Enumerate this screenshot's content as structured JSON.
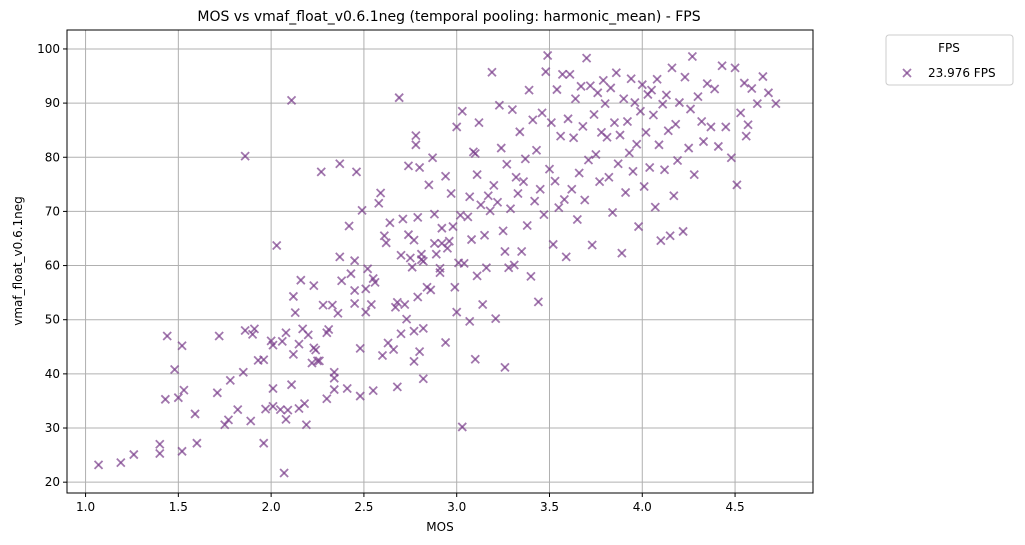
{
  "chart_data": {
    "type": "scatter",
    "title": "MOS vs vmaf_float_v0.6.1neg (temporal pooling: harmonic_mean) - FPS",
    "xlabel": "MOS",
    "ylabel": "vmaf_float_v0.6.1neg",
    "xlim": [
      0.9,
      4.92
    ],
    "ylim": [
      18.0,
      103.5
    ],
    "xticks": [
      1.0,
      1.5,
      2.0,
      2.5,
      3.0,
      3.5,
      4.0,
      4.5
    ],
    "xtick_labels": [
      "1.0",
      "1.5",
      "2.0",
      "2.5",
      "3.0",
      "3.5",
      "4.0",
      "4.5"
    ],
    "yticks": [
      20,
      30,
      40,
      50,
      60,
      70,
      80,
      90,
      100
    ],
    "ytick_labels": [
      "20",
      "30",
      "40",
      "50",
      "60",
      "70",
      "80",
      "90",
      "100"
    ],
    "grid": true,
    "legend": {
      "title": "FPS",
      "placement": "outside-top-right"
    },
    "marker": "x",
    "series": [
      {
        "name": "23.976 FPS",
        "color": "#7b3f8c",
        "points": [
          [
            1.07,
            23.2
          ],
          [
            1.19,
            23.6
          ],
          [
            1.26,
            25.1
          ],
          [
            1.4,
            25.3
          ],
          [
            1.4,
            27
          ],
          [
            1.43,
            35.3
          ],
          [
            1.44,
            47
          ],
          [
            1.48,
            40.8
          ],
          [
            1.5,
            35.6
          ],
          [
            1.52,
            25.7
          ],
          [
            1.52,
            45.2
          ],
          [
            1.53,
            37
          ],
          [
            1.59,
            32.6
          ],
          [
            1.6,
            27.2
          ],
          [
            1.71,
            36.5
          ],
          [
            1.72,
            47
          ],
          [
            1.75,
            30.6
          ],
          [
            1.77,
            31.5
          ],
          [
            1.78,
            38.8
          ],
          [
            1.82,
            33.4
          ],
          [
            1.85,
            40.3
          ],
          [
            1.86,
            48
          ],
          [
            1.86,
            80.2
          ],
          [
            1.89,
            31.3
          ],
          [
            1.9,
            47.3
          ],
          [
            1.91,
            48.3
          ],
          [
            1.93,
            42.5
          ],
          [
            1.96,
            27.2
          ],
          [
            1.96,
            42.6
          ],
          [
            1.97,
            33.5
          ],
          [
            2,
            46.1
          ],
          [
            2.01,
            37.3
          ],
          [
            2.01,
            34
          ],
          [
            2.01,
            45.3
          ],
          [
            2.03,
            63.7
          ],
          [
            2.05,
            33.4
          ],
          [
            2.06,
            46
          ],
          [
            2.07,
            21.7
          ],
          [
            2.08,
            31.6
          ],
          [
            2.08,
            47.6
          ],
          [
            2.09,
            33.3
          ],
          [
            2.11,
            38
          ],
          [
            2.11,
            90.5
          ],
          [
            2.12,
            43.6
          ],
          [
            2.12,
            54.3
          ],
          [
            2.13,
            51.3
          ],
          [
            2.15,
            33.6
          ],
          [
            2.15,
            45.5
          ],
          [
            2.16,
            57.3
          ],
          [
            2.17,
            48.3
          ],
          [
            2.18,
            34.5
          ],
          [
            2.19,
            30.6
          ],
          [
            2.2,
            47.2
          ],
          [
            2.22,
            42
          ],
          [
            2.23,
            56.3
          ],
          [
            2.23,
            44.8
          ],
          [
            2.24,
            44.4
          ],
          [
            2.25,
            42.4
          ],
          [
            2.26,
            42.4
          ],
          [
            2.27,
            77.3
          ],
          [
            2.28,
            52.7
          ],
          [
            2.3,
            35.4
          ],
          [
            2.3,
            47.6
          ],
          [
            2.31,
            48.2
          ],
          [
            2.33,
            52.7
          ],
          [
            2.34,
            37.1
          ],
          [
            2.34,
            40.3
          ],
          [
            2.34,
            39.2
          ],
          [
            2.36,
            51.2
          ],
          [
            2.37,
            61.6
          ],
          [
            2.37,
            78.8
          ],
          [
            2.38,
            57.2
          ],
          [
            2.41,
            37.3
          ],
          [
            2.42,
            67.3
          ],
          [
            2.43,
            58.5
          ],
          [
            2.45,
            55.4
          ],
          [
            2.45,
            53
          ],
          [
            2.45,
            60.9
          ],
          [
            2.46,
            77.3
          ],
          [
            2.48,
            44.7
          ],
          [
            2.48,
            35.9
          ],
          [
            2.49,
            70.2
          ],
          [
            2.51,
            55.7
          ],
          [
            2.51,
            51.4
          ],
          [
            2.52,
            59.4
          ],
          [
            2.54,
            52.8
          ],
          [
            2.55,
            36.9
          ],
          [
            2.55,
            57.6
          ],
          [
            2.56,
            56.9
          ],
          [
            2.58,
            71.5
          ],
          [
            2.59,
            73.4
          ],
          [
            2.6,
            43.4
          ],
          [
            2.61,
            65.5
          ],
          [
            2.62,
            64.2
          ],
          [
            2.63,
            45.7
          ],
          [
            2.64,
            67.9
          ],
          [
            2.66,
            44.5
          ],
          [
            2.67,
            52.3
          ],
          [
            2.68,
            53.2
          ],
          [
            2.68,
            37.6
          ],
          [
            2.69,
            91
          ],
          [
            2.7,
            47.4
          ],
          [
            2.7,
            61.9
          ],
          [
            2.71,
            68.6
          ],
          [
            2.72,
            52.8
          ],
          [
            2.73,
            50.1
          ],
          [
            2.74,
            65.7
          ],
          [
            2.74,
            78.4
          ],
          [
            2.75,
            61.4
          ],
          [
            2.76,
            59.7
          ],
          [
            2.77,
            64.7
          ],
          [
            2.77,
            42.3
          ],
          [
            2.77,
            47.9
          ],
          [
            2.78,
            84
          ],
          [
            2.78,
            82.3
          ],
          [
            2.79,
            54.2
          ],
          [
            2.79,
            68.9
          ],
          [
            2.8,
            44.1
          ],
          [
            2.8,
            78.1
          ],
          [
            2.81,
            61.1
          ],
          [
            2.81,
            62.1
          ],
          [
            2.82,
            39.1
          ],
          [
            2.82,
            60.8
          ],
          [
            2.82,
            48.4
          ],
          [
            2.84,
            56
          ],
          [
            2.85,
            74.9
          ],
          [
            2.86,
            55.5
          ],
          [
            2.87,
            79.9
          ],
          [
            2.88,
            69.5
          ],
          [
            2.88,
            64.1
          ],
          [
            2.89,
            62.1
          ],
          [
            2.91,
            59.5
          ],
          [
            2.91,
            58.7
          ],
          [
            2.92,
            64.1
          ],
          [
            2.92,
            66.9
          ],
          [
            2.94,
            76.5
          ],
          [
            2.94,
            45.8
          ],
          [
            2.95,
            63.2
          ],
          [
            2.96,
            64.5
          ],
          [
            2.97,
            73.3
          ],
          [
            2.98,
            67.2
          ],
          [
            2.99,
            56
          ],
          [
            3,
            51.4
          ],
          [
            3,
            85.6
          ],
          [
            3.01,
            60.5
          ],
          [
            3.02,
            69.3
          ],
          [
            3.03,
            30.2
          ],
          [
            3.03,
            88.5
          ],
          [
            3.04,
            60.4
          ],
          [
            3.06,
            69
          ],
          [
            3.07,
            72.7
          ],
          [
            3.07,
            49.7
          ],
          [
            3.08,
            64.8
          ],
          [
            3.09,
            81
          ],
          [
            3.1,
            42.7
          ],
          [
            3.1,
            80.7
          ],
          [
            3.11,
            58.1
          ],
          [
            3.11,
            76.8
          ],
          [
            3.12,
            86.4
          ],
          [
            3.13,
            71.2
          ],
          [
            3.14,
            52.8
          ],
          [
            3.15,
            65.6
          ],
          [
            3.16,
            59.6
          ],
          [
            3.17,
            72.9
          ],
          [
            3.18,
            70.1
          ],
          [
            3.19,
            95.7
          ],
          [
            3.2,
            74.8
          ],
          [
            3.21,
            50.2
          ],
          [
            3.22,
            71.7
          ],
          [
            3.23,
            89.6
          ],
          [
            3.24,
            81.7
          ],
          [
            3.25,
            66.4
          ],
          [
            3.26,
            62.6
          ],
          [
            3.26,
            41.2
          ],
          [
            3.27,
            78.7
          ],
          [
            3.28,
            59.6
          ],
          [
            3.29,
            70.5
          ],
          [
            3.3,
            88.8
          ],
          [
            3.31,
            60.1
          ],
          [
            3.32,
            76.3
          ],
          [
            3.33,
            73.3
          ],
          [
            3.34,
            84.7
          ],
          [
            3.35,
            62.6
          ],
          [
            3.36,
            75.5
          ],
          [
            3.37,
            79.7
          ],
          [
            3.38,
            67.4
          ],
          [
            3.39,
            92.4
          ],
          [
            3.4,
            58
          ],
          [
            3.41,
            86.9
          ],
          [
            3.42,
            71.9
          ],
          [
            3.43,
            81.3
          ],
          [
            3.44,
            53.3
          ],
          [
            3.45,
            74.1
          ],
          [
            3.46,
            88.2
          ],
          [
            3.47,
            69.4
          ],
          [
            3.48,
            95.8
          ],
          [
            3.49,
            98.8
          ],
          [
            3.5,
            77.8
          ],
          [
            3.51,
            86.4
          ],
          [
            3.52,
            63.9
          ],
          [
            3.53,
            75.6
          ],
          [
            3.54,
            92.5
          ],
          [
            3.55,
            70.7
          ],
          [
            3.56,
            83.9
          ],
          [
            3.57,
            95.3
          ],
          [
            3.58,
            72.2
          ],
          [
            3.59,
            61.6
          ],
          [
            3.6,
            87.1
          ],
          [
            3.61,
            95.3
          ],
          [
            3.62,
            74.1
          ],
          [
            3.63,
            83.6
          ],
          [
            3.64,
            90.8
          ],
          [
            3.65,
            68.5
          ],
          [
            3.66,
            77.1
          ],
          [
            3.67,
            93.1
          ],
          [
            3.68,
            85.7
          ],
          [
            3.69,
            72.1
          ],
          [
            3.7,
            98.3
          ],
          [
            3.71,
            79.5
          ],
          [
            3.72,
            93.2
          ],
          [
            3.73,
            63.8
          ],
          [
            3.74,
            87.9
          ],
          [
            3.75,
            80.5
          ],
          [
            3.76,
            91.9
          ],
          [
            3.77,
            75.5
          ],
          [
            3.78,
            84.6
          ],
          [
            3.79,
            94.2
          ],
          [
            3.8,
            89.9
          ],
          [
            3.81,
            83.7
          ],
          [
            3.82,
            76.3
          ],
          [
            3.83,
            92.8
          ],
          [
            3.84,
            69.8
          ],
          [
            3.85,
            86.4
          ],
          [
            3.86,
            95.6
          ],
          [
            3.87,
            78.8
          ],
          [
            3.88,
            84.1
          ],
          [
            3.89,
            62.3
          ],
          [
            3.9,
            90.8
          ],
          [
            3.91,
            73.5
          ],
          [
            3.92,
            86.6
          ],
          [
            3.93,
            80.8
          ],
          [
            3.94,
            94.5
          ],
          [
            3.95,
            77.4
          ],
          [
            3.96,
            90.1
          ],
          [
            3.97,
            82.4
          ],
          [
            3.98,
            67.2
          ],
          [
            3.99,
            88.5
          ],
          [
            4.0,
            93.4
          ],
          [
            4.01,
            74.6
          ],
          [
            4.02,
            84.6
          ],
          [
            4.03,
            91.6
          ],
          [
            4.04,
            78.1
          ],
          [
            4.05,
            92.4
          ],
          [
            4.06,
            87.8
          ],
          [
            4.07,
            70.8
          ],
          [
            4.08,
            94.4
          ],
          [
            4.09,
            82.3
          ],
          [
            4.1,
            64.6
          ],
          [
            4.11,
            89.8
          ],
          [
            4.12,
            77.7
          ],
          [
            4.13,
            91.5
          ],
          [
            4.14,
            84.9
          ],
          [
            4.15,
            65.5
          ],
          [
            4.16,
            96.5
          ],
          [
            4.17,
            72.9
          ],
          [
            4.18,
            86.1
          ],
          [
            4.19,
            79.4
          ],
          [
            4.2,
            90.1
          ],
          [
            4.22,
            66.3
          ],
          [
            4.23,
            94.8
          ],
          [
            4.25,
            81.7
          ],
          [
            4.26,
            88.9
          ],
          [
            4.27,
            98.6
          ],
          [
            4.28,
            76.8
          ],
          [
            4.3,
            91.2
          ],
          [
            4.32,
            86.6
          ],
          [
            4.33,
            82.9
          ],
          [
            4.35,
            93.6
          ],
          [
            4.37,
            85.6
          ],
          [
            4.39,
            92.6
          ],
          [
            4.41,
            82
          ],
          [
            4.43,
            96.9
          ],
          [
            4.45,
            85.6
          ],
          [
            4.48,
            79.9
          ],
          [
            4.5,
            96.5
          ],
          [
            4.51,
            74.9
          ],
          [
            4.53,
            88.2
          ],
          [
            4.55,
            93.7
          ],
          [
            4.56,
            83.9
          ],
          [
            4.57,
            86
          ],
          [
            4.59,
            92.7
          ],
          [
            4.62,
            89.9
          ],
          [
            4.65,
            94.9
          ],
          [
            4.68,
            91.9
          ],
          [
            4.72,
            89.9
          ]
        ]
      }
    ]
  }
}
